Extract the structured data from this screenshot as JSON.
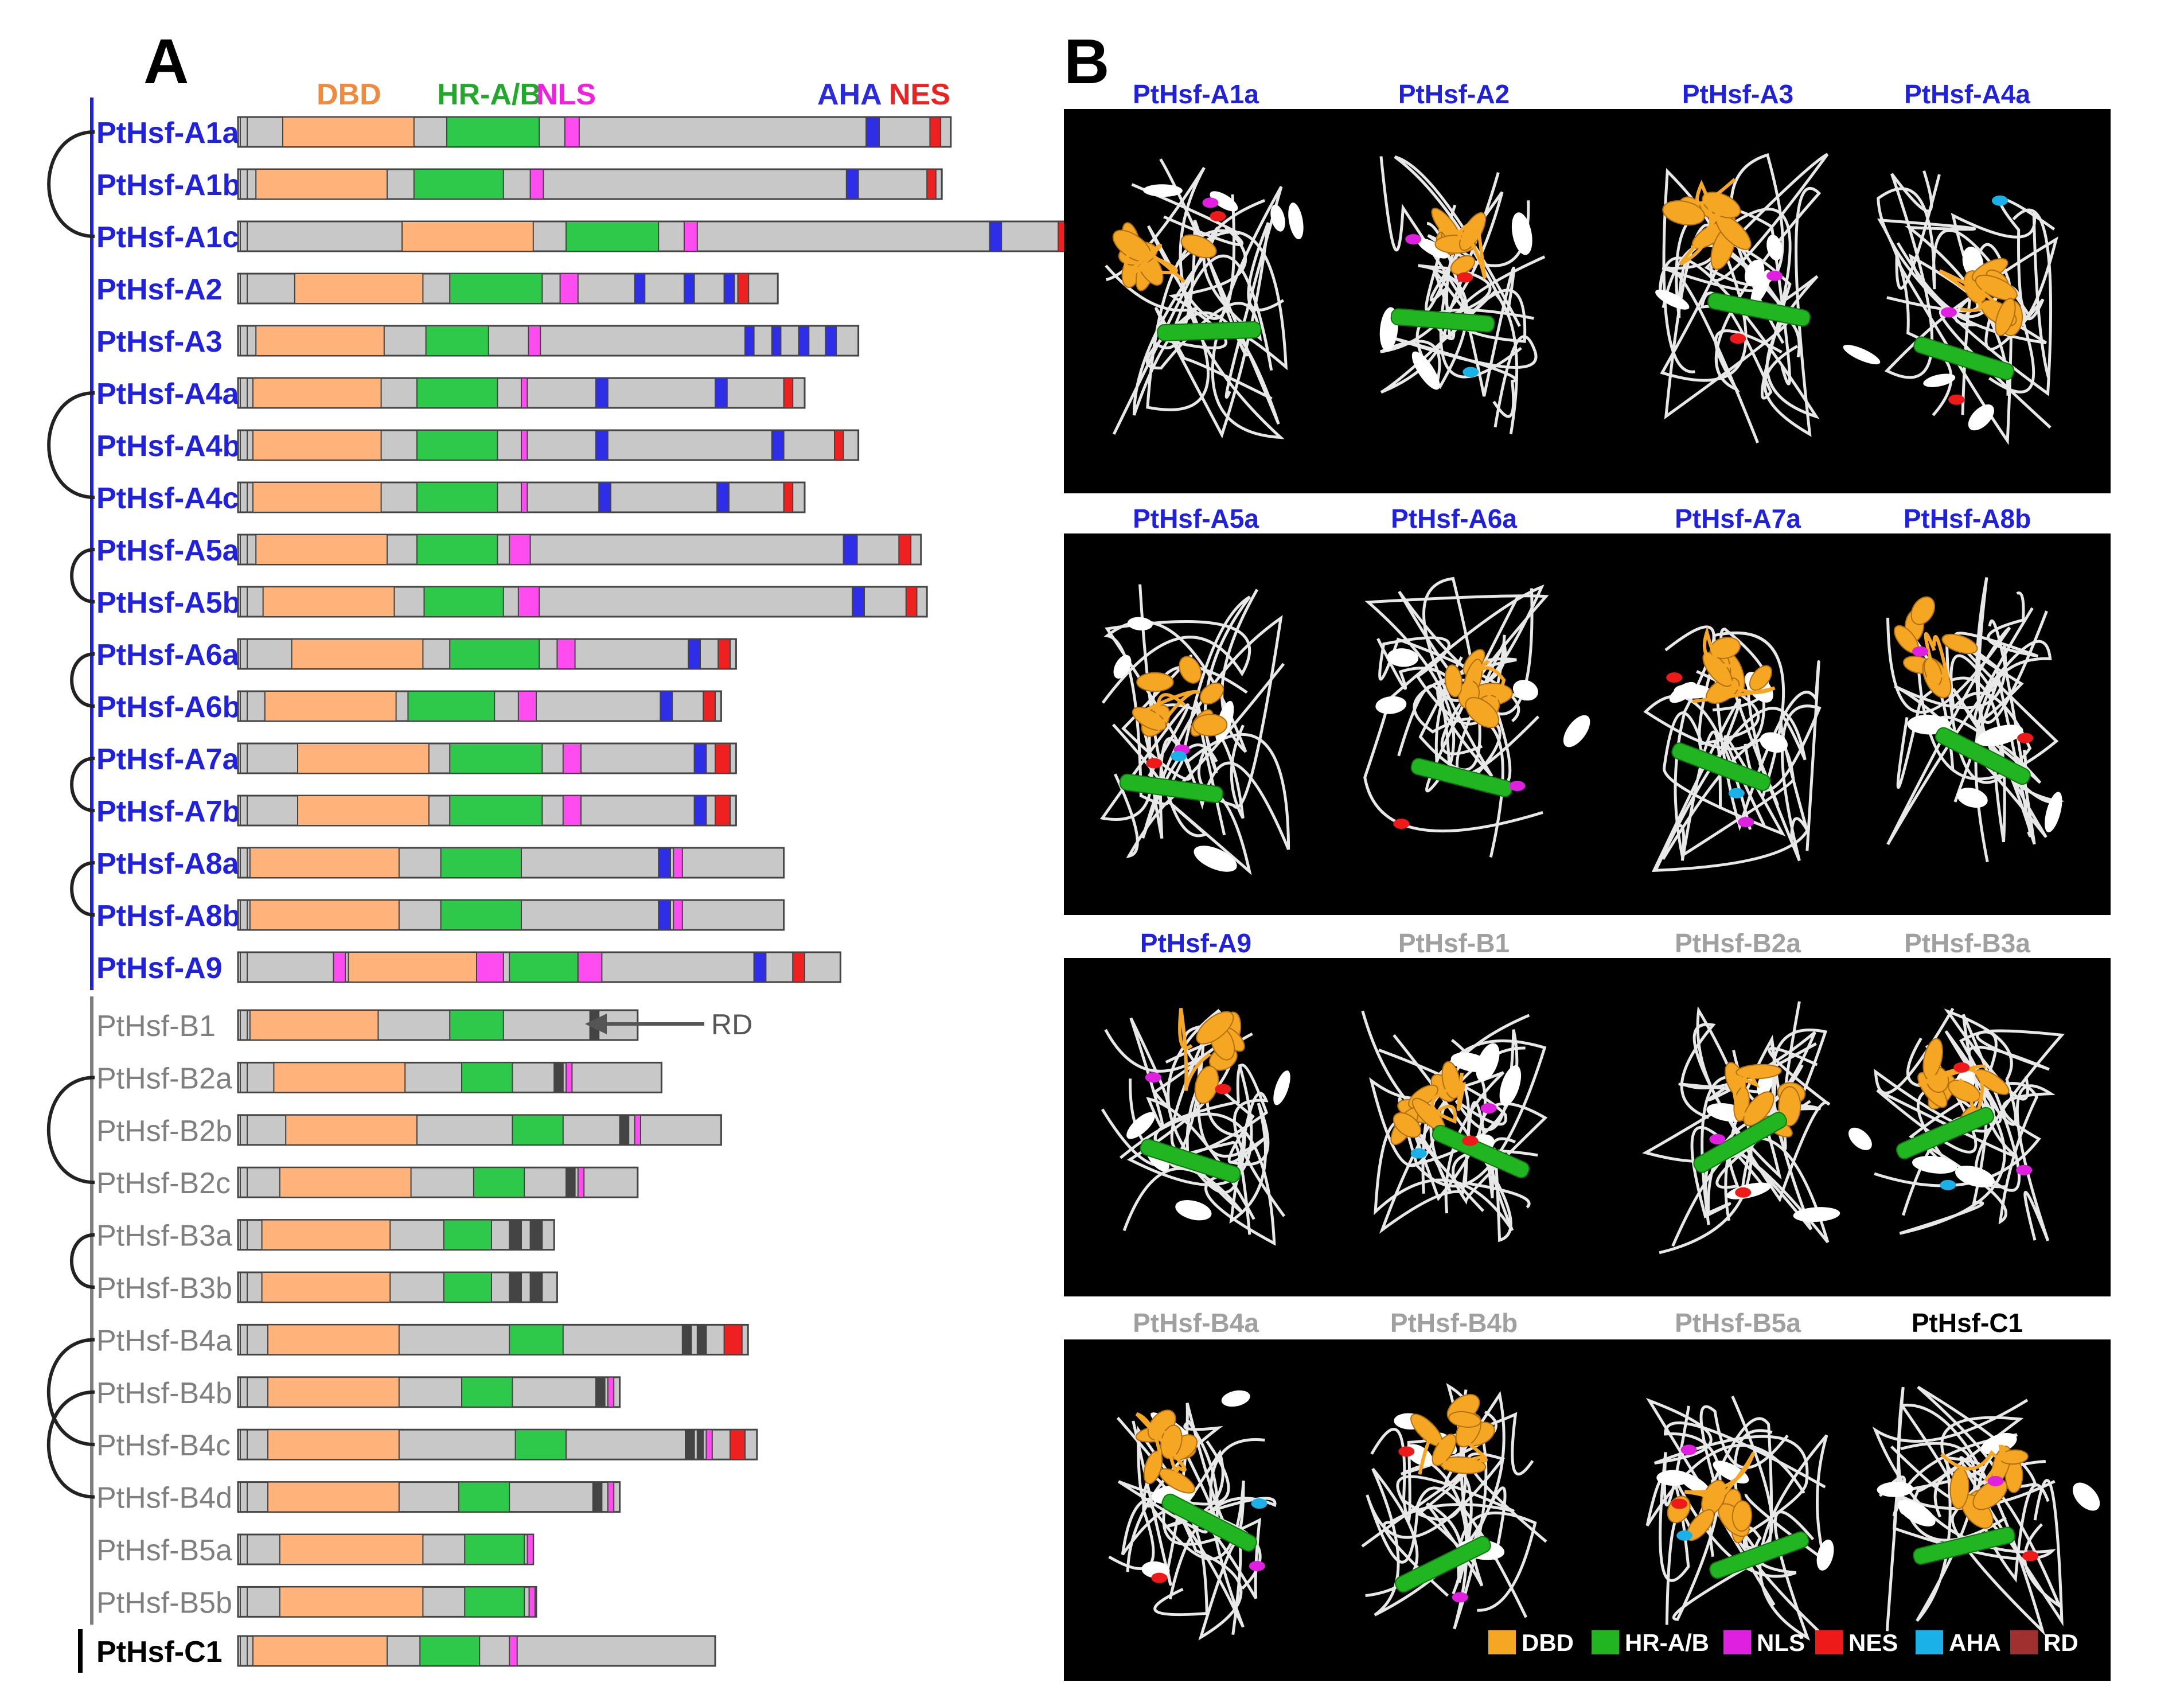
{
  "panel_a": {
    "label": "A",
    "legend": [
      {
        "key": "dbd",
        "text": "DBD",
        "color": "#f08a3c"
      },
      {
        "key": "hr",
        "text": "HR-A/B",
        "color": "#22a82a"
      },
      {
        "key": "nls",
        "text": "NLS",
        "color": "#f020e0"
      },
      {
        "key": "aha",
        "text": "AHA",
        "color": "#2a2ae0"
      },
      {
        "key": "nes",
        "text": "NES",
        "color": "#ee2020"
      }
    ],
    "rd_label": "RD",
    "colors": {
      "body": "#c8c8c8",
      "body_stroke": "#444444",
      "dbd": "#ffb27a",
      "hr": "#2ec84a",
      "nls": "#ff4cf0",
      "aha": "#2e2ee8",
      "nes": "#ee2020",
      "rd": "#444444",
      "class_a": "#2020e0",
      "class_b": "#7f7f7f",
      "class_c": "#000000",
      "pair_arc": "#222222"
    },
    "proteins": [
      {
        "name": "PtHsf-A1a",
        "class": "A",
        "length": 1195,
        "dbd": [
          75,
          295
        ],
        "hr": [
          350,
          505
        ],
        "nls": [
          [
            548,
            572
          ]
        ],
        "aha": [
          [
            1053,
            1075
          ]
        ],
        "nes": [
          [
            1160,
            1178
          ]
        ],
        "rd": []
      },
      {
        "name": "PtHsf-A1b",
        "class": "A",
        "length": 1180,
        "dbd": [
          30,
          250
        ],
        "hr": [
          295,
          445
        ],
        "nls": [
          [
            490,
            512
          ]
        ],
        "aha": [
          [
            1020,
            1040
          ]
        ],
        "nes": [
          [
            1155,
            1170
          ]
        ],
        "rd": []
      },
      {
        "name": "PtHsf-A1c",
        "class": "A",
        "length": 1405,
        "dbd": [
          275,
          495
        ],
        "hr": [
          550,
          705
        ],
        "nls": [
          [
            748,
            770
          ]
        ],
        "aha": [
          [
            1260,
            1280
          ]
        ],
        "nes": [
          [
            1375,
            1395
          ]
        ],
        "rd": []
      },
      {
        "name": "PtHsf-A2",
        "class": "A",
        "length": 905,
        "dbd": [
          95,
          310
        ],
        "hr": [
          355,
          510
        ],
        "nls": [
          [
            540,
            570
          ]
        ],
        "aha": [
          [
            665,
            682
          ],
          [
            748,
            765
          ],
          [
            815,
            832
          ]
        ],
        "nes": [
          [
            838,
            856
          ]
        ],
        "rd": []
      },
      {
        "name": "PtHsf-A3",
        "class": "A",
        "length": 1040,
        "dbd": [
          30,
          245
        ],
        "hr": [
          315,
          420
        ],
        "nls": [
          [
            487,
            507
          ]
        ],
        "aha": [
          [
            850,
            865
          ],
          [
            895,
            910
          ],
          [
            940,
            957
          ],
          [
            985,
            1003
          ]
        ],
        "nes": [],
        "rd": []
      },
      {
        "name": "PtHsf-A4a",
        "class": "A",
        "length": 950,
        "dbd": [
          25,
          240
        ],
        "hr": [
          300,
          435
        ],
        "nls": [
          [
            475,
            485
          ]
        ],
        "aha": [
          [
            600,
            620
          ],
          [
            800,
            820
          ]
        ],
        "nes": [
          [
            915,
            930
          ]
        ],
        "rd": []
      },
      {
        "name": "PtHsf-A4b",
        "class": "A",
        "length": 1040,
        "dbd": [
          25,
          240
        ],
        "hr": [
          300,
          435
        ],
        "nls": [
          [
            475,
            485
          ]
        ],
        "aha": [
          [
            600,
            620
          ],
          [
            895,
            915
          ]
        ],
        "nes": [
          [
            1000,
            1015
          ]
        ],
        "rd": []
      },
      {
        "name": "PtHsf-A4c",
        "class": "A",
        "length": 950,
        "dbd": [
          25,
          240
        ],
        "hr": [
          300,
          435
        ],
        "nls": [
          [
            475,
            485
          ]
        ],
        "aha": [
          [
            605,
            625
          ],
          [
            803,
            823
          ]
        ],
        "nes": [
          [
            915,
            930
          ]
        ],
        "rd": []
      },
      {
        "name": "PtHsf-A5a",
        "class": "A",
        "length": 1145,
        "dbd": [
          30,
          250
        ],
        "hr": [
          300,
          435
        ],
        "nls": [
          [
            455,
            490
          ]
        ],
        "aha": [
          [
            1015,
            1038
          ]
        ],
        "nes": [
          [
            1108,
            1128
          ]
        ],
        "rd": []
      },
      {
        "name": "PtHsf-A5b",
        "class": "A",
        "length": 1155,
        "dbd": [
          42,
          262
        ],
        "hr": [
          312,
          445
        ],
        "nls": [
          [
            470,
            505
          ]
        ],
        "aha": [
          [
            1030,
            1050
          ]
        ],
        "nes": [
          [
            1120,
            1138
          ]
        ],
        "rd": []
      },
      {
        "name": "PtHsf-A6a",
        "class": "A",
        "length": 835,
        "dbd": [
          90,
          310
        ],
        "hr": [
          355,
          505
        ],
        "nls": [
          [
            535,
            565
          ]
        ],
        "aha": [
          [
            755,
            775
          ]
        ],
        "nes": [
          [
            805,
            825
          ]
        ],
        "rd": []
      },
      {
        "name": "PtHsf-A6b",
        "class": "A",
        "length": 810,
        "dbd": [
          45,
          265
        ],
        "hr": [
          285,
          430
        ],
        "nls": [
          [
            470,
            500
          ]
        ],
        "aha": [
          [
            708,
            728
          ]
        ],
        "nes": [
          [
            780,
            800
          ]
        ],
        "rd": []
      },
      {
        "name": "PtHsf-A7a",
        "class": "A",
        "length": 835,
        "dbd": [
          100,
          320
        ],
        "hr": [
          355,
          510
        ],
        "nls": [
          [
            545,
            575
          ]
        ],
        "aha": [
          [
            765,
            785
          ]
        ],
        "nes": [
          [
            800,
            825
          ]
        ],
        "rd": []
      },
      {
        "name": "PtHsf-A7b",
        "class": "A",
        "length": 835,
        "dbd": [
          100,
          320
        ],
        "hr": [
          355,
          510
        ],
        "nls": [
          [
            545,
            575
          ]
        ],
        "aha": [
          [
            765,
            785
          ]
        ],
        "nes": [
          [
            800,
            825
          ]
        ],
        "rd": []
      },
      {
        "name": "PtHsf-A8a",
        "class": "A",
        "length": 915,
        "dbd": [
          20,
          270
        ],
        "hr": [
          340,
          475
        ],
        "nls": [
          [
            730,
            745
          ]
        ],
        "aha": [
          [
            705,
            725
          ]
        ],
        "nes": [],
        "rd": []
      },
      {
        "name": "PtHsf-A8b",
        "class": "A",
        "length": 915,
        "dbd": [
          20,
          270
        ],
        "hr": [
          340,
          475
        ],
        "nls": [
          [
            730,
            745
          ]
        ],
        "aha": [
          [
            705,
            725
          ]
        ],
        "nes": [],
        "rd": []
      },
      {
        "name": "PtHsf-A9",
        "class": "A",
        "length": 1010,
        "dbd": [
          185,
          400
        ],
        "hr": [
          455,
          570
        ],
        "nls": [
          [
            160,
            180
          ],
          [
            400,
            445
          ],
          [
            570,
            610
          ]
        ],
        "aha": [
          [
            865,
            885
          ]
        ],
        "nes": [
          [
            930,
            950
          ]
        ],
        "rd": []
      },
      {
        "name": "PtHsf-B1",
        "class": "B",
        "length": 670,
        "dbd": [
          20,
          235
        ],
        "hr": [
          355,
          445
        ],
        "nls": [],
        "aha": [],
        "nes": [],
        "rd": [
          [
            590,
            605
          ]
        ]
      },
      {
        "name": "PtHsf-B2a",
        "class": "B",
        "length": 710,
        "dbd": [
          60,
          280
        ],
        "hr": [
          375,
          460
        ],
        "nls": [
          [
            550,
            560
          ]
        ],
        "aha": [],
        "nes": [],
        "rd": [
          [
            530,
            545
          ]
        ]
      },
      {
        "name": "PtHsf-B2b",
        "class": "B",
        "length": 810,
        "dbd": [
          80,
          300
        ],
        "hr": [
          460,
          545
        ],
        "nls": [
          [
            665,
            675
          ]
        ],
        "aha": [],
        "nes": [],
        "rd": [
          [
            640,
            655
          ]
        ]
      },
      {
        "name": "PtHsf-B2c",
        "class": "B",
        "length": 670,
        "dbd": [
          70,
          290
        ],
        "hr": [
          395,
          480
        ],
        "nls": [
          [
            570,
            580
          ]
        ],
        "aha": [],
        "nes": [],
        "rd": [
          [
            550,
            565
          ]
        ]
      },
      {
        "name": "PtHsf-B3a",
        "class": "B",
        "length": 530,
        "dbd": [
          40,
          255
        ],
        "hr": [
          345,
          425
        ],
        "nls": [],
        "aha": [],
        "nes": [],
        "rd": [
          [
            455,
            475
          ],
          [
            490,
            510
          ]
        ]
      },
      {
        "name": "PtHsf-B3b",
        "class": "B",
        "length": 535,
        "dbd": [
          40,
          255
        ],
        "hr": [
          345,
          425
        ],
        "nls": [],
        "aha": [],
        "nes": [],
        "rd": [
          [
            455,
            475
          ],
          [
            490,
            510
          ]
        ]
      },
      {
        "name": "PtHsf-B4a",
        "class": "B",
        "length": 855,
        "dbd": [
          50,
          270
        ],
        "hr": [
          455,
          545
        ],
        "nls": [],
        "aha": [],
        "nes": [
          [
            815,
            845
          ]
        ],
        "rd": [
          [
            745,
            760
          ],
          [
            770,
            785
          ]
        ]
      },
      {
        "name": "PtHsf-B4b",
        "class": "B",
        "length": 640,
        "dbd": [
          50,
          270
        ],
        "hr": [
          375,
          460
        ],
        "nls": [
          [
            620,
            630
          ]
        ],
        "aha": [],
        "nes": [],
        "rd": [
          [
            600,
            615
          ]
        ]
      },
      {
        "name": "PtHsf-B4c",
        "class": "B",
        "length": 870,
        "dbd": [
          50,
          270
        ],
        "hr": [
          465,
          550
        ],
        "nls": [
          [
            785,
            795
          ]
        ],
        "aha": [],
        "nes": [
          [
            825,
            850
          ]
        ],
        "rd": [
          [
            750,
            765
          ],
          [
            770,
            780
          ]
        ]
      },
      {
        "name": "PtHsf-B4d",
        "class": "B",
        "length": 640,
        "dbd": [
          50,
          270
        ],
        "hr": [
          370,
          455
        ],
        "nls": [
          [
            620,
            630
          ]
        ],
        "aha": [],
        "nes": [],
        "rd": [
          [
            595,
            610
          ]
        ]
      },
      {
        "name": "PtHsf-B5a",
        "class": "B",
        "length": 495,
        "dbd": [
          70,
          310
        ],
        "hr": [
          380,
          480
        ],
        "nls": [
          [
            485,
            495
          ]
        ],
        "aha": [],
        "nes": [],
        "rd": []
      },
      {
        "name": "PtHsf-B5b",
        "class": "B",
        "length": 500,
        "dbd": [
          70,
          310
        ],
        "hr": [
          380,
          480
        ],
        "nls": [
          [
            488,
            498
          ]
        ],
        "aha": [],
        "nes": [],
        "rd": []
      },
      {
        "name": "PtHsf-C1",
        "class": "C",
        "length": 800,
        "dbd": [
          25,
          250
        ],
        "hr": [
          305,
          405
        ],
        "nls": [
          [
            455,
            468
          ]
        ],
        "aha": [],
        "nes": [],
        "rd": []
      }
    ],
    "pairs": [
      [
        0,
        2
      ],
      [
        5,
        7
      ],
      [
        8,
        9
      ],
      [
        10,
        11
      ],
      [
        12,
        13
      ],
      [
        14,
        15
      ],
      [
        18,
        20
      ],
      [
        21,
        22
      ],
      [
        23,
        25
      ],
      [
        24,
        26
      ]
    ]
  },
  "panel_b": {
    "label": "B",
    "colors": {
      "dbd": "#f5a623",
      "hr": "#22b522",
      "nls": "#e020e0",
      "nes": "#ee1a1a",
      "aha": "#1ab0e8",
      "rd": "#a03030",
      "coil": "#e8e8e8",
      "helix_white": "#ffffff"
    },
    "rows": [
      [
        {
          "name": "PtHsf-A1a",
          "class": "A"
        },
        {
          "name": "PtHsf-A2",
          "class": "A"
        },
        {
          "name": "PtHsf-A3",
          "class": "A"
        },
        {
          "name": "PtHsf-A4a",
          "class": "A"
        }
      ],
      [
        {
          "name": "PtHsf-A5a",
          "class": "A"
        },
        {
          "name": "PtHsf-A6a",
          "class": "A"
        },
        {
          "name": "PtHsf-A7a",
          "class": "A"
        },
        {
          "name": "PtHsf-A8b",
          "class": "A"
        }
      ],
      [
        {
          "name": "PtHsf-A9",
          "class": "A"
        },
        {
          "name": "PtHsf-B1",
          "class": "B"
        },
        {
          "name": "PtHsf-B2a",
          "class": "B"
        },
        {
          "name": "PtHsf-B3a",
          "class": "B"
        }
      ],
      [
        {
          "name": "PtHsf-B4a",
          "class": "B"
        },
        {
          "name": "PtHsf-B4b",
          "class": "B"
        },
        {
          "name": "PtHsf-B5a",
          "class": "B"
        },
        {
          "name": "PtHsf-C1",
          "class": "C"
        }
      ]
    ],
    "title_colors": {
      "A": "#2020e0",
      "B": "#a0a0a0",
      "C": "#000000"
    },
    "legend": [
      {
        "key": "dbd",
        "text": "DBD"
      },
      {
        "key": "hr",
        "text": "HR-A/B"
      },
      {
        "key": "nls",
        "text": "NLS"
      },
      {
        "key": "nes",
        "text": "NES"
      },
      {
        "key": "aha",
        "text": "AHA"
      },
      {
        "key": "rd",
        "text": "RD"
      }
    ]
  }
}
